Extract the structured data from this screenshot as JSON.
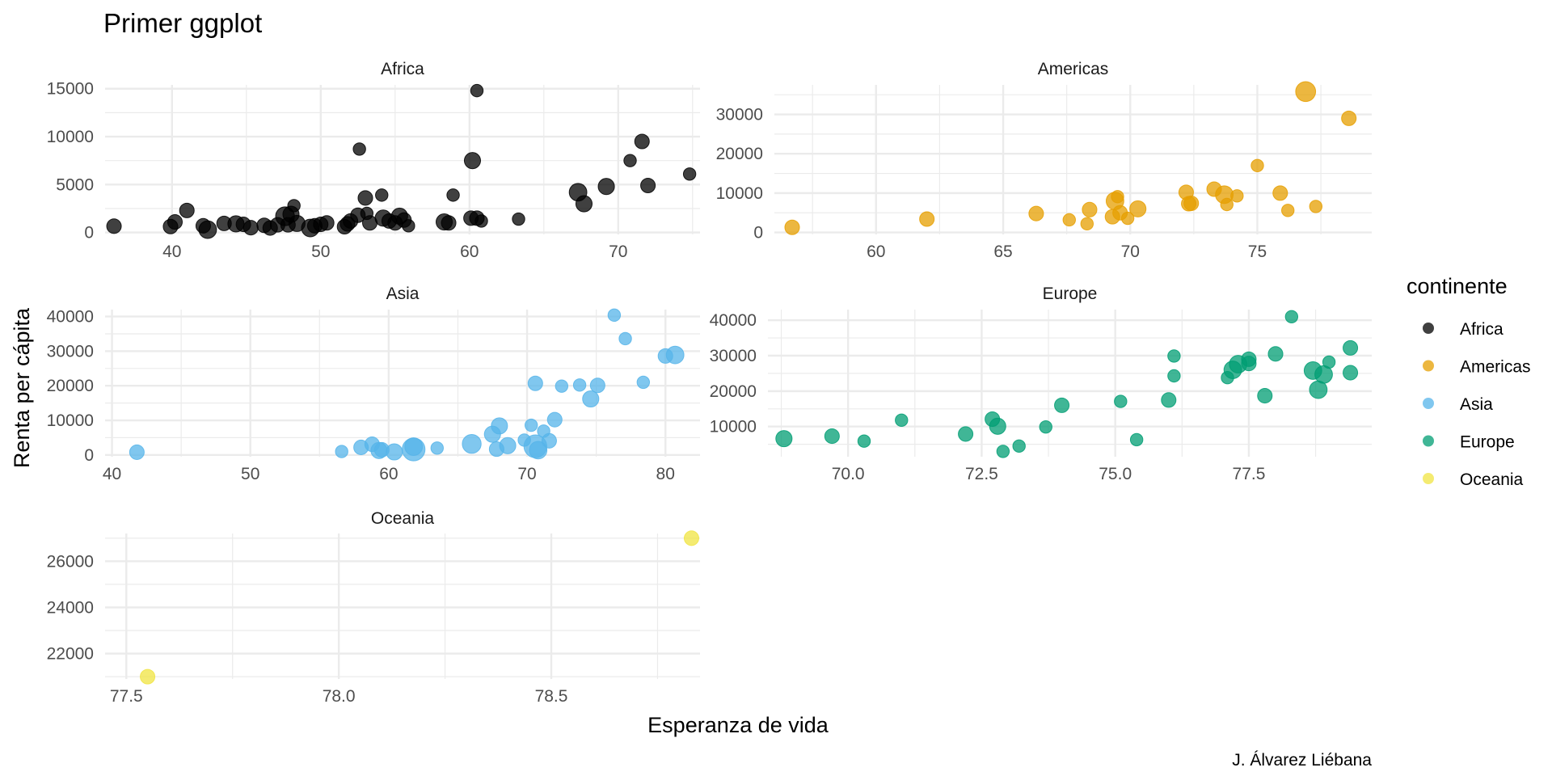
{
  "chart_data": {
    "type": "scatter",
    "title": "Primer ggplot",
    "xlabel": "Esperanza de vida",
    "ylabel": "Renta per cápita",
    "caption": "J. Álvarez Liébana",
    "legend": {
      "title": "continente",
      "position": "right",
      "entries": [
        {
          "label": "Africa",
          "color": "#000000"
        },
        {
          "label": "Americas",
          "color": "#E69F00"
        },
        {
          "label": "Asia",
          "color": "#56B4E9"
        },
        {
          "label": "Europe",
          "color": "#009E73"
        },
        {
          "label": "Oceania",
          "color": "#F0E442"
        }
      ]
    },
    "grid": true,
    "size_encoding": "population (relative, 1-10 scale)",
    "panels": [
      {
        "name": "Africa",
        "color": "#000000",
        "xlim": [
          35.5,
          75.5
        ],
        "ylim": [
          -200,
          15400
        ],
        "xticks": [
          40,
          50,
          60,
          70
        ],
        "yticks": [
          0,
          5000,
          10000,
          15000
        ],
        "ytick_labels": [
          "0",
          "5000",
          "10000",
          "15000"
        ],
        "xtick_labels": [
          "40",
          "50",
          "60",
          "70"
        ],
        "points": [
          {
            "x": 36.1,
            "y": 660,
            "s": 2
          },
          {
            "x": 39.9,
            "y": 620,
            "s": 2
          },
          {
            "x": 40.2,
            "y": 1100,
            "s": 2
          },
          {
            "x": 41.0,
            "y": 2300,
            "s": 2
          },
          {
            "x": 42.1,
            "y": 700,
            "s": 2
          },
          {
            "x": 42.4,
            "y": 300,
            "s": 4
          },
          {
            "x": 43.5,
            "y": 950,
            "s": 2
          },
          {
            "x": 44.3,
            "y": 900,
            "s": 3
          },
          {
            "x": 44.8,
            "y": 850,
            "s": 2
          },
          {
            "x": 45.3,
            "y": 500,
            "s": 2
          },
          {
            "x": 46.2,
            "y": 750,
            "s": 2
          },
          {
            "x": 46.6,
            "y": 470,
            "s": 2
          },
          {
            "x": 47.1,
            "y": 800,
            "s": 2
          },
          {
            "x": 47.6,
            "y": 1700,
            "s": 5
          },
          {
            "x": 47.8,
            "y": 800,
            "s": 2
          },
          {
            "x": 48.0,
            "y": 1900,
            "s": 3
          },
          {
            "x": 48.2,
            "y": 2800,
            "s": 1
          },
          {
            "x": 48.4,
            "y": 950,
            "s": 3
          },
          {
            "x": 49.3,
            "y": 470,
            "s": 4
          },
          {
            "x": 49.6,
            "y": 700,
            "s": 2
          },
          {
            "x": 50.0,
            "y": 850,
            "s": 2
          },
          {
            "x": 50.4,
            "y": 1000,
            "s": 2
          },
          {
            "x": 51.6,
            "y": 600,
            "s": 2
          },
          {
            "x": 51.8,
            "y": 900,
            "s": 2
          },
          {
            "x": 52.0,
            "y": 1200,
            "s": 2
          },
          {
            "x": 52.5,
            "y": 1800,
            "s": 2
          },
          {
            "x": 52.6,
            "y": 8700,
            "s": 1
          },
          {
            "x": 53.0,
            "y": 3600,
            "s": 2
          },
          {
            "x": 53.1,
            "y": 2000,
            "s": 1
          },
          {
            "x": 53.3,
            "y": 1000,
            "s": 2
          },
          {
            "x": 54.1,
            "y": 3900,
            "s": 1
          },
          {
            "x": 54.2,
            "y": 1500,
            "s": 3
          },
          {
            "x": 54.6,
            "y": 1200,
            "s": 2
          },
          {
            "x": 55.0,
            "y": 1000,
            "s": 2
          },
          {
            "x": 55.3,
            "y": 1700,
            "s": 3
          },
          {
            "x": 55.6,
            "y": 1300,
            "s": 2
          },
          {
            "x": 55.9,
            "y": 700,
            "s": 1
          },
          {
            "x": 58.3,
            "y": 1100,
            "s": 3
          },
          {
            "x": 58.6,
            "y": 1000,
            "s": 2
          },
          {
            "x": 58.9,
            "y": 3900,
            "s": 1
          },
          {
            "x": 60.2,
            "y": 7500,
            "s": 3
          },
          {
            "x": 60.1,
            "y": 1500,
            "s": 2
          },
          {
            "x": 60.5,
            "y": 14800,
            "s": 1
          },
          {
            "x": 60.5,
            "y": 1500,
            "s": 2
          },
          {
            "x": 60.8,
            "y": 1200,
            "s": 1
          },
          {
            "x": 63.3,
            "y": 1400,
            "s": 1
          },
          {
            "x": 67.3,
            "y": 4200,
            "s": 4
          },
          {
            "x": 67.7,
            "y": 3000,
            "s": 3
          },
          {
            "x": 69.2,
            "y": 4800,
            "s": 3
          },
          {
            "x": 70.8,
            "y": 7500,
            "s": 1
          },
          {
            "x": 71.6,
            "y": 9500,
            "s": 2
          },
          {
            "x": 72.0,
            "y": 4900,
            "s": 2
          },
          {
            "x": 74.8,
            "y": 6100,
            "s": 1
          }
        ]
      },
      {
        "name": "Americas",
        "color": "#E69F00",
        "xlim": [
          56,
          79.5
        ],
        "ylim": [
          -500,
          37500
        ],
        "xticks": [
          60,
          65,
          70,
          75
        ],
        "xtick_labels": [
          "60",
          "65",
          "70",
          "75"
        ],
        "yticks": [
          0,
          10000,
          20000,
          30000
        ],
        "ytick_labels": [
          "0",
          "10000",
          "20000",
          "30000"
        ],
        "points": [
          {
            "x": 56.7,
            "y": 1300,
            "s": 2
          },
          {
            "x": 62.0,
            "y": 3400,
            "s": 2
          },
          {
            "x": 66.3,
            "y": 4800,
            "s": 2
          },
          {
            "x": 67.6,
            "y": 3200,
            "s": 1
          },
          {
            "x": 68.3,
            "y": 2200,
            "s": 1
          },
          {
            "x": 68.4,
            "y": 5800,
            "s": 2
          },
          {
            "x": 69.3,
            "y": 4000,
            "s": 2
          },
          {
            "x": 69.4,
            "y": 8000,
            "s": 4
          },
          {
            "x": 69.5,
            "y": 9100,
            "s": 1
          },
          {
            "x": 69.6,
            "y": 5000,
            "s": 2
          },
          {
            "x": 69.9,
            "y": 3600,
            "s": 1
          },
          {
            "x": 70.3,
            "y": 6000,
            "s": 3
          },
          {
            "x": 72.2,
            "y": 10200,
            "s": 2
          },
          {
            "x": 72.3,
            "y": 7300,
            "s": 2
          },
          {
            "x": 72.4,
            "y": 7400,
            "s": 2
          },
          {
            "x": 73.3,
            "y": 11000,
            "s": 2
          },
          {
            "x": 73.7,
            "y": 9600,
            "s": 4
          },
          {
            "x": 73.8,
            "y": 7100,
            "s": 1
          },
          {
            "x": 74.2,
            "y": 9300,
            "s": 1
          },
          {
            "x": 75.0,
            "y": 17000,
            "s": 1
          },
          {
            "x": 75.9,
            "y": 10000,
            "s": 2
          },
          {
            "x": 76.2,
            "y": 5600,
            "s": 1
          },
          {
            "x": 76.9,
            "y": 35800,
            "s": 6
          },
          {
            "x": 77.3,
            "y": 6600,
            "s": 1
          },
          {
            "x": 78.6,
            "y": 29000,
            "s": 2
          }
        ]
      },
      {
        "name": "Asia",
        "color": "#56B4E9",
        "xlim": [
          39.5,
          82.5
        ],
        "ylim": [
          -500,
          42000
        ],
        "xticks": [
          40,
          50,
          60,
          70,
          80
        ],
        "xtick_labels": [
          "40",
          "50",
          "60",
          "70",
          "80"
        ],
        "yticks": [
          0,
          10000,
          20000,
          30000,
          40000
        ],
        "ytick_labels": [
          "0",
          "10000",
          "20000",
          "30000",
          "40000"
        ],
        "points": [
          {
            "x": 41.8,
            "y": 800,
            "s": 2
          },
          {
            "x": 56.6,
            "y": 1000,
            "s": 1
          },
          {
            "x": 58.0,
            "y": 2200,
            "s": 2
          },
          {
            "x": 58.8,
            "y": 3100,
            "s": 2
          },
          {
            "x": 59.3,
            "y": 1300,
            "s": 3
          },
          {
            "x": 59.5,
            "y": 1500,
            "s": 2
          },
          {
            "x": 60.4,
            "y": 900,
            "s": 3
          },
          {
            "x": 61.8,
            "y": 1600,
            "s": 9
          },
          {
            "x": 61.8,
            "y": 2400,
            "s": 4
          },
          {
            "x": 63.5,
            "y": 2000,
            "s": 1
          },
          {
            "x": 66.0,
            "y": 3200,
            "s": 5
          },
          {
            "x": 67.5,
            "y": 6000,
            "s": 3
          },
          {
            "x": 68.0,
            "y": 8400,
            "s": 3
          },
          {
            "x": 67.8,
            "y": 1700,
            "s": 2
          },
          {
            "x": 68.6,
            "y": 2700,
            "s": 3
          },
          {
            "x": 69.8,
            "y": 4300,
            "s": 1
          },
          {
            "x": 70.3,
            "y": 8600,
            "s": 1
          },
          {
            "x": 70.6,
            "y": 20700,
            "s": 2
          },
          {
            "x": 70.6,
            "y": 2500,
            "s": 9
          },
          {
            "x": 70.8,
            "y": 1400,
            "s": 4
          },
          {
            "x": 71.2,
            "y": 6900,
            "s": 1
          },
          {
            "x": 71.6,
            "y": 4100,
            "s": 2
          },
          {
            "x": 72.0,
            "y": 10200,
            "s": 2
          },
          {
            "x": 72.5,
            "y": 19900,
            "s": 1
          },
          {
            "x": 73.8,
            "y": 20200,
            "s": 1
          },
          {
            "x": 74.6,
            "y": 16200,
            "s": 3
          },
          {
            "x": 75.1,
            "y": 20100,
            "s": 2
          },
          {
            "x": 76.3,
            "y": 40400,
            "s": 1
          },
          {
            "x": 77.1,
            "y": 33600,
            "s": 1
          },
          {
            "x": 78.4,
            "y": 21000,
            "s": 1
          },
          {
            "x": 80.0,
            "y": 28600,
            "s": 2
          },
          {
            "x": 80.7,
            "y": 28900,
            "s": 4
          }
        ]
      },
      {
        "name": "Europe",
        "color": "#009E73",
        "xlim": [
          68.5,
          79.8
        ],
        "ylim": [
          1500,
          43000
        ],
        "xticks": [
          70.0,
          72.5,
          75.0,
          77.5
        ],
        "xtick_labels": [
          "70.0",
          "72.5",
          "75.0",
          "77.5"
        ],
        "yticks": [
          10000,
          20000,
          30000,
          40000
        ],
        "ytick_labels": [
          "10000",
          "20000",
          "30000",
          "40000"
        ],
        "points": [
          {
            "x": 68.8,
            "y": 6600,
            "s": 3
          },
          {
            "x": 69.7,
            "y": 7300,
            "s": 2
          },
          {
            "x": 70.3,
            "y": 5900,
            "s": 1
          },
          {
            "x": 71.0,
            "y": 11800,
            "s": 1
          },
          {
            "x": 72.2,
            "y": 7900,
            "s": 2
          },
          {
            "x": 72.7,
            "y": 12100,
            "s": 2
          },
          {
            "x": 72.8,
            "y": 10100,
            "s": 3
          },
          {
            "x": 72.9,
            "y": 3000,
            "s": 1
          },
          {
            "x": 73.2,
            "y": 4500,
            "s": 1
          },
          {
            "x": 73.7,
            "y": 9900,
            "s": 1
          },
          {
            "x": 74.0,
            "y": 16000,
            "s": 2
          },
          {
            "x": 75.1,
            "y": 17100,
            "s": 1
          },
          {
            "x": 75.4,
            "y": 6300,
            "s": 1
          },
          {
            "x": 76.0,
            "y": 17500,
            "s": 2
          },
          {
            "x": 76.1,
            "y": 24300,
            "s": 1
          },
          {
            "x": 76.1,
            "y": 29900,
            "s": 1
          },
          {
            "x": 77.1,
            "y": 23800,
            "s": 1
          },
          {
            "x": 77.2,
            "y": 26000,
            "s": 4
          },
          {
            "x": 77.3,
            "y": 27600,
            "s": 4
          },
          {
            "x": 77.5,
            "y": 29000,
            "s": 2
          },
          {
            "x": 77.5,
            "y": 27800,
            "s": 2
          },
          {
            "x": 77.8,
            "y": 18700,
            "s": 2
          },
          {
            "x": 78.0,
            "y": 30500,
            "s": 2
          },
          {
            "x": 78.3,
            "y": 41000,
            "s": 1
          },
          {
            "x": 78.7,
            "y": 25800,
            "s": 4
          },
          {
            "x": 78.8,
            "y": 20400,
            "s": 4
          },
          {
            "x": 78.9,
            "y": 24700,
            "s": 4
          },
          {
            "x": 79.0,
            "y": 28200,
            "s": 1
          },
          {
            "x": 79.4,
            "y": 32200,
            "s": 2
          },
          {
            "x": 79.4,
            "y": 25200,
            "s": 2
          }
        ]
      },
      {
        "name": "Oceania",
        "color": "#F0E442",
        "xlim": [
          77.45,
          78.85
        ],
        "ylim": [
          20900,
          27200
        ],
        "xticks": [
          77.5,
          78.0,
          78.5
        ],
        "xtick_labels": [
          "77.5",
          "78.0",
          "78.5"
        ],
        "yticks": [
          22000,
          24000,
          26000
        ],
        "ytick_labels": [
          "22000",
          "24000",
          "26000"
        ],
        "points": [
          {
            "x": 77.55,
            "y": 21000,
            "s": 2
          },
          {
            "x": 78.83,
            "y": 26997,
            "s": 2
          }
        ]
      }
    ]
  }
}
